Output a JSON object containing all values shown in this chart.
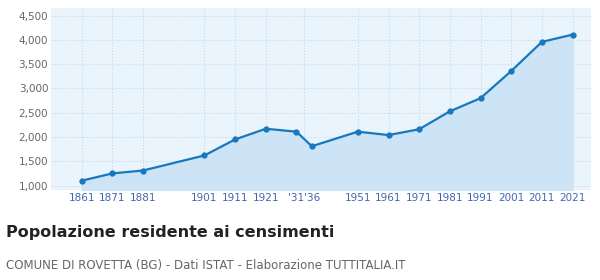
{
  "years": [
    1861,
    1871,
    1881,
    1901,
    1911,
    1921,
    1931,
    1936,
    1951,
    1961,
    1971,
    1981,
    1991,
    2001,
    2011,
    2021
  ],
  "population": [
    1100,
    1250,
    1310,
    1620,
    1950,
    2170,
    2110,
    1810,
    2110,
    2040,
    2160,
    2530,
    2800,
    3360,
    3960,
    4110
  ],
  "ylim": [
    900,
    4650
  ],
  "yticks": [
    1000,
    1500,
    2000,
    2500,
    3000,
    3500,
    4000,
    4500
  ],
  "line_color": "#1878bf",
  "fill_color": "#cce4f5",
  "marker_color": "#1878bf",
  "grid_color": "#c8d8e8",
  "background_color": "#eaf4fc",
  "title": "Popolazione residente ai censimenti",
  "subtitle": "COMUNE DI ROVETTA (BG) - Dati ISTAT - Elaborazione TUTTITALIA.IT",
  "title_fontsize": 11.5,
  "subtitle_fontsize": 8.5,
  "tick_label_color": "#4466aa",
  "xlim_left": 1851,
  "xlim_right": 2027
}
